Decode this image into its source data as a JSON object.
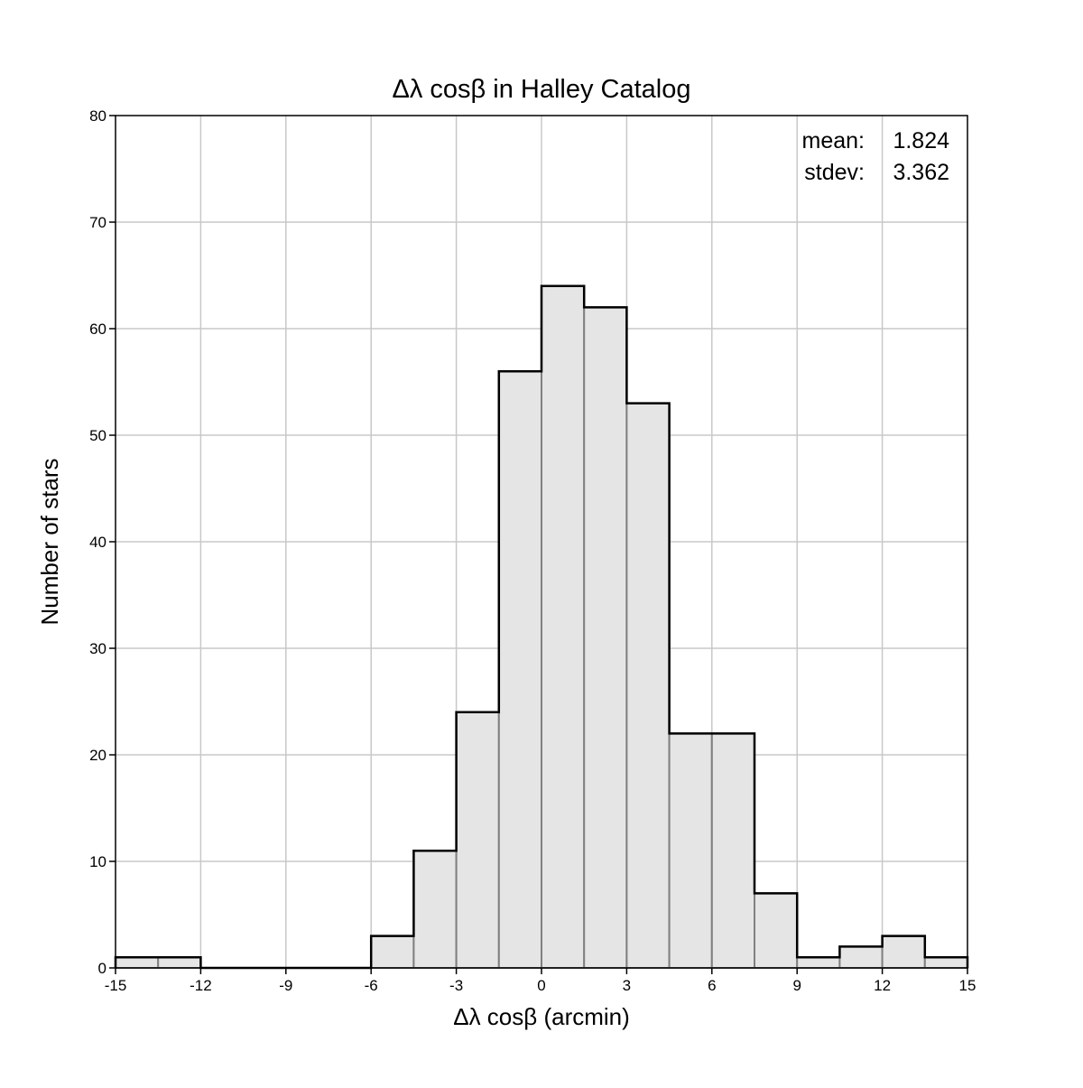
{
  "chart_data": {
    "type": "bar",
    "title": "Δλ cosβ in Halley Catalog",
    "xlabel": "Δλ cosβ (arcmin)",
    "ylabel": "Number of stars",
    "xlim": [
      -15,
      15
    ],
    "ylim": [
      0,
      80
    ],
    "xticks": [
      -15,
      -12,
      -9,
      -6,
      -3,
      0,
      3,
      6,
      9,
      12,
      15
    ],
    "yticks": [
      0,
      10,
      20,
      30,
      40,
      50,
      60,
      70,
      80
    ],
    "grid": true,
    "bin_width": 1.5,
    "bin_edges": [
      -15,
      -13.5,
      -12,
      -10.5,
      -9,
      -7.5,
      -6,
      -4.5,
      -3,
      -1.5,
      0,
      1.5,
      3,
      4.5,
      6,
      7.5,
      9,
      10.5,
      12,
      13.5,
      15
    ],
    "counts": [
      1,
      1,
      0,
      0,
      0,
      0,
      3,
      11,
      24,
      56,
      64,
      62,
      53,
      22,
      22,
      7,
      1,
      2,
      3,
      1
    ],
    "colors": {
      "bar_fill": "#e5e5e5",
      "bar_edge": "#808080",
      "outline": "#000000",
      "grid": "#c8c8c8"
    },
    "stats": {
      "placement": "top-right",
      "mean_label": "mean:",
      "mean_value": "1.824",
      "stdev_label": "stdev:",
      "stdev_value": "3.362"
    }
  }
}
